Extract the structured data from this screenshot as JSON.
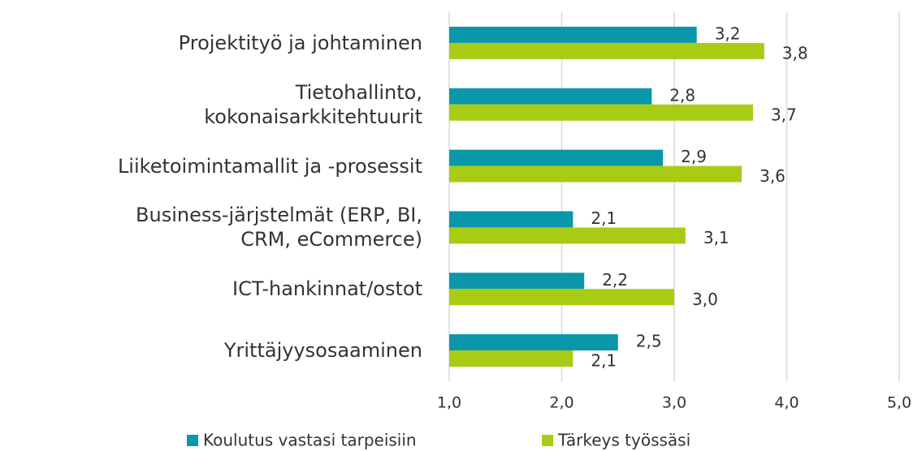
{
  "chart_data": {
    "type": "hbar",
    "categories": [
      "Projektityö ja johtaminen",
      "Tietohallinto,\nkokonaisarkkitehtuurit",
      "Liiketoimintamallit ja -prosessit",
      "Business-järjstelmät (ERP, BI,\nCRM, eCommerce)",
      "ICT-hankinnat/ostot",
      "Yrittäjyysosaaminen"
    ],
    "series": [
      {
        "name": "Koulutus vastasi tarpeisiin",
        "color": "#0a97a9",
        "values": [
          3.2,
          2.8,
          2.9,
          2.1,
          2.2,
          2.5
        ],
        "value_labels": [
          "3,2",
          "2,8",
          "2,9",
          "2,1",
          "2,2",
          "2,5"
        ]
      },
      {
        "name": "Tärkeys työssäsi",
        "color": "#a8cc14",
        "values": [
          3.8,
          3.7,
          3.6,
          3.1,
          3.0,
          2.1
        ],
        "value_labels": [
          "3,8",
          "3,7",
          "3,6",
          "3,1",
          "3,0",
          "2,1"
        ]
      }
    ],
    "xlim": [
      1,
      5
    ],
    "xticks": [
      {
        "value": 1,
        "label": "1,0"
      },
      {
        "value": 2,
        "label": "2,0"
      },
      {
        "value": 3,
        "label": "3,0"
      },
      {
        "value": 4,
        "label": "4,0"
      },
      {
        "value": 5,
        "label": "5,0"
      }
    ],
    "grid": true,
    "legend": "bottom"
  }
}
